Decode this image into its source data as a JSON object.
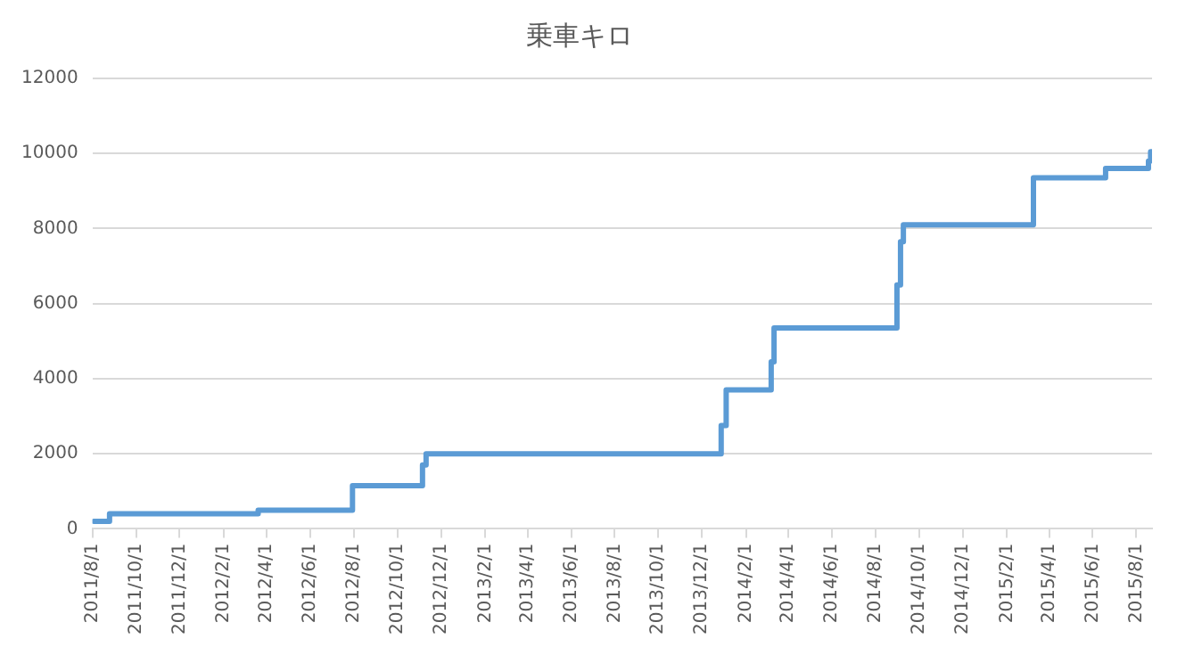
{
  "chart_data": {
    "type": "step",
    "title": "乗車キロ",
    "x": [
      "2011-08-03",
      "2011-08-25",
      "2012-03-20",
      "2012-07-30",
      "2012-11-05",
      "2012-11-10",
      "2013-12-28",
      "2014-01-04",
      "2014-03-08",
      "2014-03-12",
      "2014-08-31",
      "2014-09-05",
      "2014-09-09",
      "2015-03-10",
      "2015-06-19",
      "2015-08-18",
      "2015-08-21",
      "2015-08-23"
    ],
    "series": [
      {
        "color": "#5b9bd5",
        "values": [
          200,
          400,
          500,
          1150,
          1700,
          2000,
          2750,
          3700,
          4450,
          5350,
          6500,
          7650,
          8100,
          9350,
          9600,
          9800,
          10050,
          10050
        ]
      }
    ],
    "xlim": [
      "2011-08-01",
      "2015-08-23"
    ],
    "xticks": [
      {
        "value": "2011-08-01",
        "label": "2011/8/1"
      },
      {
        "value": "2011-10-01",
        "label": "2011/10/1"
      },
      {
        "value": "2011-12-01",
        "label": "2011/12/1"
      },
      {
        "value": "2012-02-01",
        "label": "2012/2/1"
      },
      {
        "value": "2012-04-01",
        "label": "2012/4/1"
      },
      {
        "value": "2012-06-01",
        "label": "2012/6/1"
      },
      {
        "value": "2012-08-01",
        "label": "2012/8/1"
      },
      {
        "value": "2012-10-01",
        "label": "2012/10/1"
      },
      {
        "value": "2012-12-01",
        "label": "2012/12/1"
      },
      {
        "value": "2013-02-01",
        "label": "2013/2/1"
      },
      {
        "value": "2013-04-01",
        "label": "2013/4/1"
      },
      {
        "value": "2013-06-01",
        "label": "2013/6/1"
      },
      {
        "value": "2013-08-01",
        "label": "2013/8/1"
      },
      {
        "value": "2013-10-01",
        "label": "2013/10/1"
      },
      {
        "value": "2013-12-01",
        "label": "2013/12/1"
      },
      {
        "value": "2014-02-01",
        "label": "2014/2/1"
      },
      {
        "value": "2014-04-01",
        "label": "2014/4/1"
      },
      {
        "value": "2014-06-01",
        "label": "2014/6/1"
      },
      {
        "value": "2014-08-01",
        "label": "2014/8/1"
      },
      {
        "value": "2014-10-01",
        "label": "2014/10/1"
      },
      {
        "value": "2014-12-01",
        "label": "2014/12/1"
      },
      {
        "value": "2015-02-01",
        "label": "2015/2/1"
      },
      {
        "value": "2015-04-01",
        "label": "2015/4/1"
      },
      {
        "value": "2015-06-01",
        "label": "2015/6/1"
      },
      {
        "value": "2015-08-01",
        "label": "2015/8/1"
      }
    ],
    "ylim": [
      0,
      12000
    ],
    "yticks": [
      0,
      2000,
      4000,
      6000,
      8000,
      10000,
      12000
    ],
    "grid": "y",
    "legend": false,
    "marker": "none",
    "line_style": "solid"
  }
}
